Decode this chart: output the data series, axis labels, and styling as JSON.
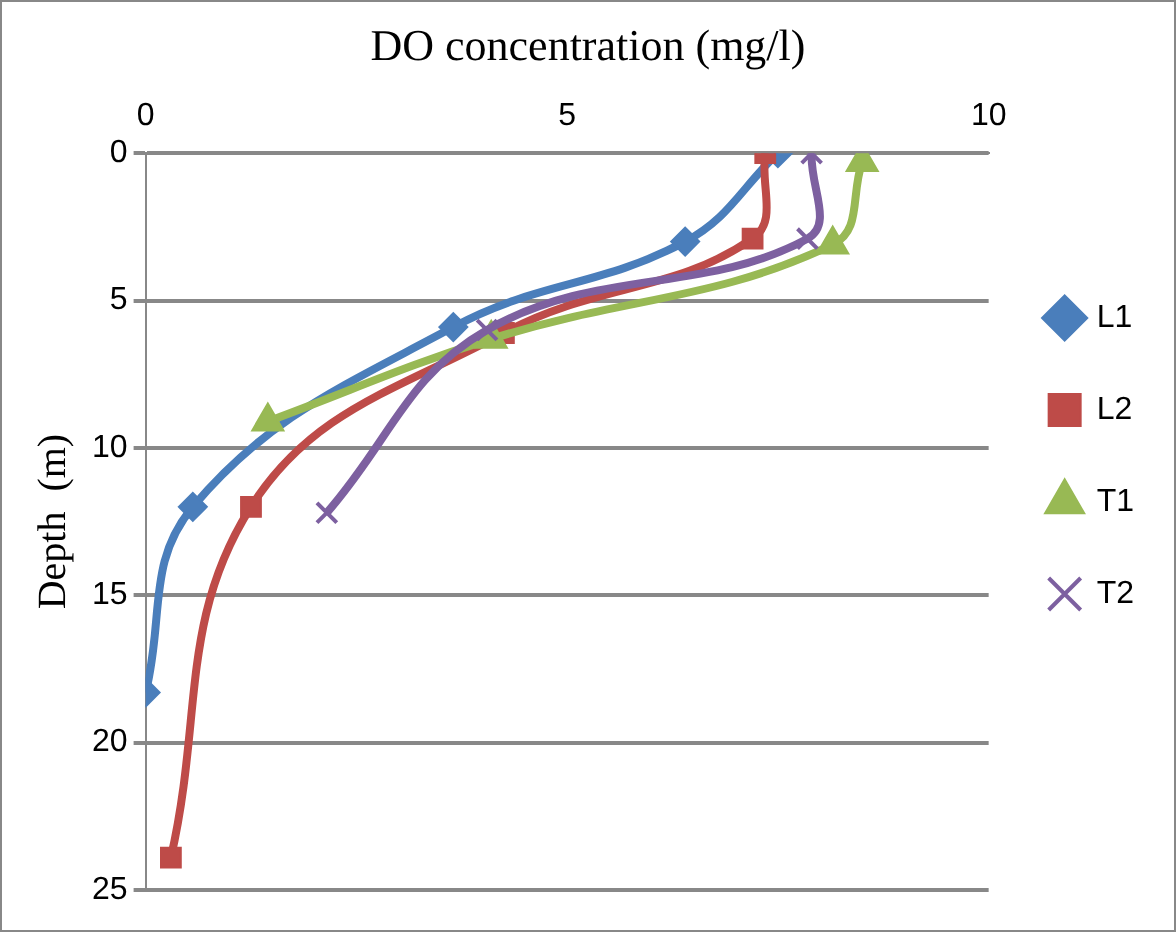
{
  "chart_data": {
    "type": "line",
    "title": "DO concentration (mg/l)",
    "ylabel": "Depth  (m)",
    "xlim": [
      0,
      10
    ],
    "xticks": [
      0,
      5,
      10
    ],
    "ylim": [
      25,
      0
    ],
    "yticks": [
      0,
      5,
      10,
      15,
      20,
      25
    ],
    "grid": "y",
    "legend": "right",
    "series": [
      {
        "name": "L1",
        "color": "#4a7ebb",
        "marker": "diamond",
        "x": [
          7.5,
          6.4,
          3.65,
          0.56,
          0
        ],
        "values": [
          0,
          3,
          5.9,
          12,
          18.3
        ]
      },
      {
        "name": "L2",
        "color": "#be4b48",
        "marker": "square",
        "x": [
          7.35,
          7.2,
          4.25,
          1.25,
          0.3
        ],
        "values": [
          0,
          2.9,
          6.1,
          12,
          23.9
        ]
      },
      {
        "name": "T1",
        "color": "#98b954",
        "marker": "triangle",
        "x": [
          8.5,
          8.15,
          4.1,
          1.45
        ],
        "values": [
          0.3,
          3.1,
          6.3,
          9.1
        ]
      },
      {
        "name": "T2",
        "color": "#7d60a0",
        "marker": "cross",
        "x": [
          7.9,
          7.85,
          4.05,
          2.15
        ],
        "values": [
          0,
          2.9,
          6,
          12.2
        ]
      }
    ]
  }
}
